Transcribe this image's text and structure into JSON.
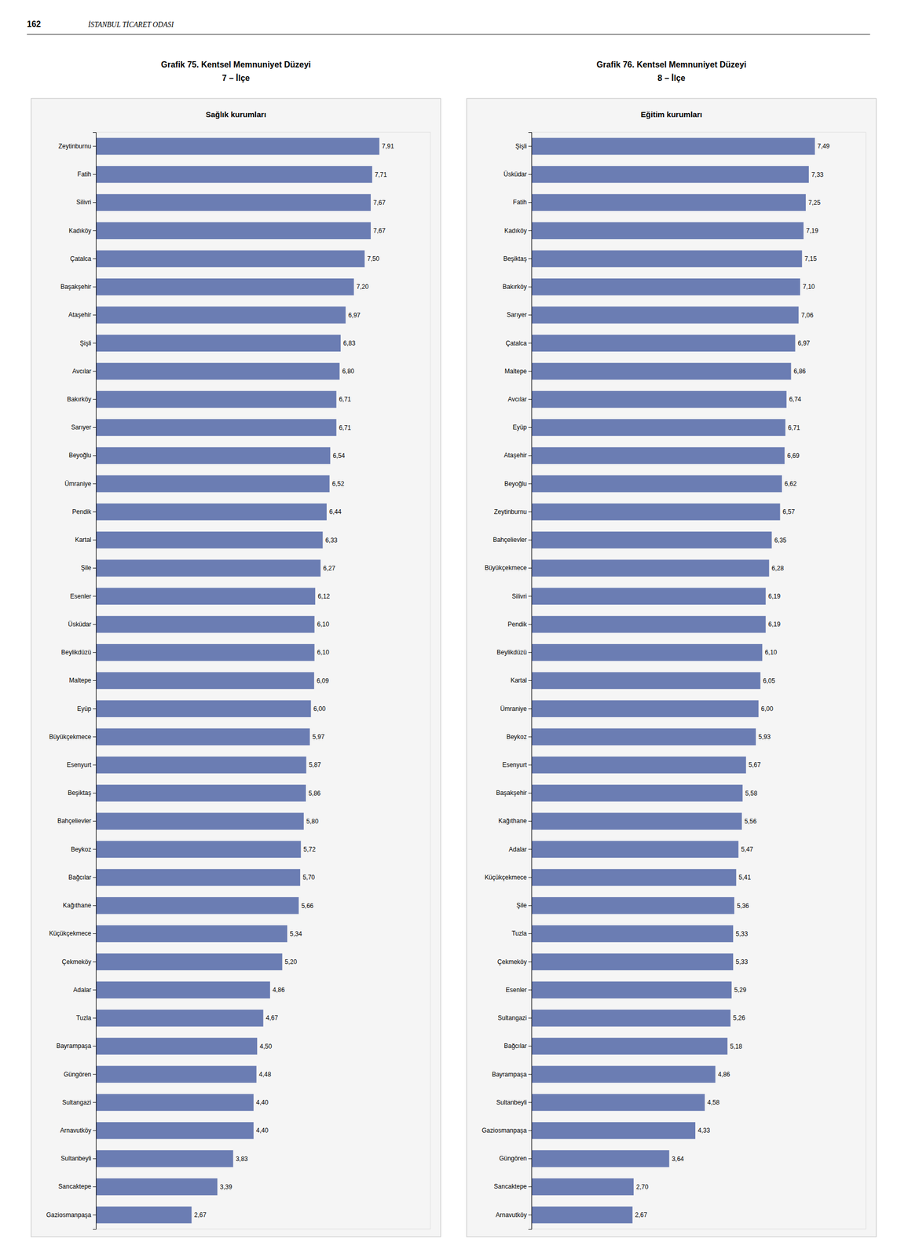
{
  "annotations": [
    "162",
    "İSTANBUL TİCARET ODASI"
  ],
  "chart_data": [
    {
      "type": "bar",
      "orientation": "horizontal",
      "title": [
        "Grafik 75. Kentsel Memnuniyet Düzeyi",
        "7 – İlçe"
      ],
      "subtitle": "Sağlık kurumları",
      "categories": [
        "Zeytinburnu",
        "Fatih",
        "Silivri",
        "Kadıköy",
        "Çatalca",
        "Başakşehir",
        "Ataşehir",
        "Şişli",
        "Avcılar",
        "Bakırköy",
        "Sarıyer",
        "Beyoğlu",
        "Ümraniye",
        "Pendik",
        "Kartal",
        "Şile",
        "Esenler",
        "Üsküdar",
        "Beylikdüzü",
        "Maltepe",
        "Eyüp",
        "Büyükçekmece",
        "Esenyurt",
        "Beşiktaş",
        "Bahçelievler",
        "Beykoz",
        "Bağcılar",
        "Kağıthane",
        "Küçükçekmece",
        "Çekmeköy",
        "Adalar",
        "Tuzla",
        "Bayrampaşa",
        "Güngören",
        "Sultangazi",
        "Arnavutköy",
        "Sultanbeyli",
        "Sancaktepe",
        "Gaziosmanpaşa"
      ],
      "values": [
        7.91,
        7.71,
        7.67,
        7.67,
        7.5,
        7.2,
        6.97,
        6.83,
        6.8,
        6.71,
        6.71,
        6.54,
        6.52,
        6.44,
        6.33,
        6.27,
        6.12,
        6.1,
        6.1,
        6.09,
        6.0,
        5.97,
        5.87,
        5.86,
        5.8,
        5.72,
        5.7,
        5.66,
        5.34,
        5.2,
        4.86,
        4.67,
        4.5,
        4.48,
        4.4,
        4.4,
        3.83,
        3.39,
        2.67
      ],
      "value_labels": [
        "7,91",
        "7,71",
        "7,67",
        "7,67",
        "7,50",
        "7,20",
        "6,97",
        "6,83",
        "6,80",
        "6,71",
        "6,71",
        "6,54",
        "6,52",
        "6,44",
        "6,33",
        "6,27",
        "6,12",
        "6,10",
        "6,10",
        "6,09",
        "6,00",
        "5,97",
        "5,87",
        "5,86",
        "5,80",
        "5,72",
        "5,70",
        "5,66",
        "5,34",
        "5,20",
        "4,86",
        "4,67",
        "4,50",
        "4,48",
        "4,40",
        "4,40",
        "3,83",
        "3,39",
        "2,67"
      ],
      "color": "#6B7DB3",
      "xlim": [
        0,
        9.3338
      ],
      "data_labels": true,
      "tick_labels": "y"
    },
    {
      "type": "bar",
      "orientation": "horizontal",
      "title": [
        "Grafik 76. Kentsel Memnuniyet Düzeyi",
        "8 – İlçe"
      ],
      "subtitle": "Eğitim kurumları",
      "categories": [
        "Şişli",
        "Üsküdar",
        "Fatih",
        "Kadıköy",
        "Beşiktaş",
        "Bakırköy",
        "Sarıyer",
        "Çatalca",
        "Maltepe",
        "Avcılar",
        "Eyüp",
        "Ataşehir",
        "Beyoğlu",
        "Zeytinburnu",
        "Bahçelievler",
        "Büyükçekmece",
        "Silivri",
        "Pendik",
        "Beylikdüzü",
        "Kartal",
        "Ümraniye",
        "Beykoz",
        "Esenyurt",
        "Başakşehir",
        "Kağıthane",
        "Adalar",
        "Küçükçekmece",
        "Şile",
        "Tuzla",
        "Çekmeköy",
        "Esenler",
        "Sultangazi",
        "Bağcılar",
        "Bayrampaşa",
        "Sultanbeyli",
        "Gaziosmanpaşa",
        "Güngören",
        "Sancaktepe",
        "Arnavutköy"
      ],
      "values": [
        7.49,
        7.33,
        7.25,
        7.19,
        7.15,
        7.1,
        7.06,
        6.97,
        6.86,
        6.74,
        6.71,
        6.69,
        6.62,
        6.57,
        6.35,
        6.28,
        6.19,
        6.19,
        6.1,
        6.05,
        6.0,
        5.93,
        5.67,
        5.58,
        5.56,
        5.47,
        5.41,
        5.36,
        5.33,
        5.33,
        5.29,
        5.26,
        5.18,
        4.86,
        4.58,
        4.33,
        3.64,
        2.7,
        2.67
      ],
      "value_labels": [
        "7,49",
        "7,33",
        "7,25",
        "7,19",
        "7,15",
        "7,10",
        "7,06",
        "6,97",
        "6,86",
        "6,74",
        "6,71",
        "6,69",
        "6,62",
        "6,57",
        "6,35",
        "6,28",
        "6,19",
        "6,19",
        "6,10",
        "6,05",
        "6,00",
        "5,93",
        "5,67",
        "5,58",
        "5,56",
        "5,47",
        "5,41",
        "5,36",
        "5,33",
        "5,33",
        "5,29",
        "5,26",
        "5,18",
        "4,86",
        "4,58",
        "4,33",
        "3,64",
        "2,70",
        "2,67"
      ],
      "color": "#6B7DB3",
      "xlim": [
        0,
        8.8382
      ],
      "data_labels": true,
      "tick_labels": "y"
    }
  ]
}
